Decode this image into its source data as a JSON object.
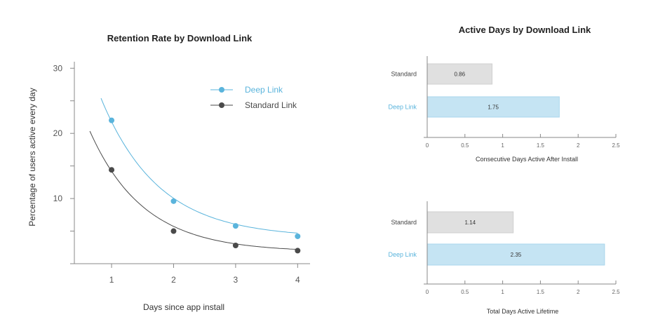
{
  "chart_data": [
    {
      "type": "line",
      "title": "Retention Rate by Download Link",
      "xlabel": "Days since app install",
      "ylabel": "Percentage of users  active every day",
      "x": [
        1,
        2,
        3,
        4
      ],
      "xticks": [
        "1",
        "2",
        "3",
        "4"
      ],
      "yticks": [
        "10",
        "20",
        "30"
      ],
      "xlim": [
        0.4,
        4.2
      ],
      "ylim": [
        0,
        31
      ],
      "legend_position": "top-right",
      "series": [
        {
          "name": "Deep Link",
          "color": "#5ab4dc",
          "values": [
            22,
            9.6,
            5.8,
            4.2
          ]
        },
        {
          "name": "Standard Link",
          "color": "#4a4a4a",
          "values": [
            14.4,
            5.0,
            2.8,
            2.0
          ]
        }
      ],
      "grid": false
    },
    {
      "type": "bar",
      "orientation": "horizontal",
      "title": "Active Days by Download Link",
      "xlabel": "Consecutive Days Active After Install",
      "categories": [
        "Standard",
        "Deep Link"
      ],
      "values": [
        0.86,
        1.75
      ],
      "value_labels": [
        "0.86",
        "1.75"
      ],
      "xticks": [
        "0",
        "0.5",
        "1",
        "1.5",
        "2",
        "2.5"
      ],
      "xlim": [
        0,
        2.5
      ],
      "colors": [
        "#e0e0e0",
        "#c5e4f3"
      ],
      "category_colors": [
        "#444444",
        "#5ab4dc"
      ]
    },
    {
      "type": "bar",
      "orientation": "horizontal",
      "xlabel": "Total Days Active Lifetime",
      "categories": [
        "Standard",
        "Deep Link"
      ],
      "values": [
        1.14,
        2.35
      ],
      "value_labels": [
        "1.14",
        "2.35"
      ],
      "xticks": [
        "0",
        "0.5",
        "1",
        "1.5",
        "2",
        "2.5"
      ],
      "xlim": [
        0,
        2.5
      ],
      "colors": [
        "#e0e0e0",
        "#c5e4f3"
      ],
      "category_colors": [
        "#444444",
        "#5ab4dc"
      ]
    }
  ]
}
